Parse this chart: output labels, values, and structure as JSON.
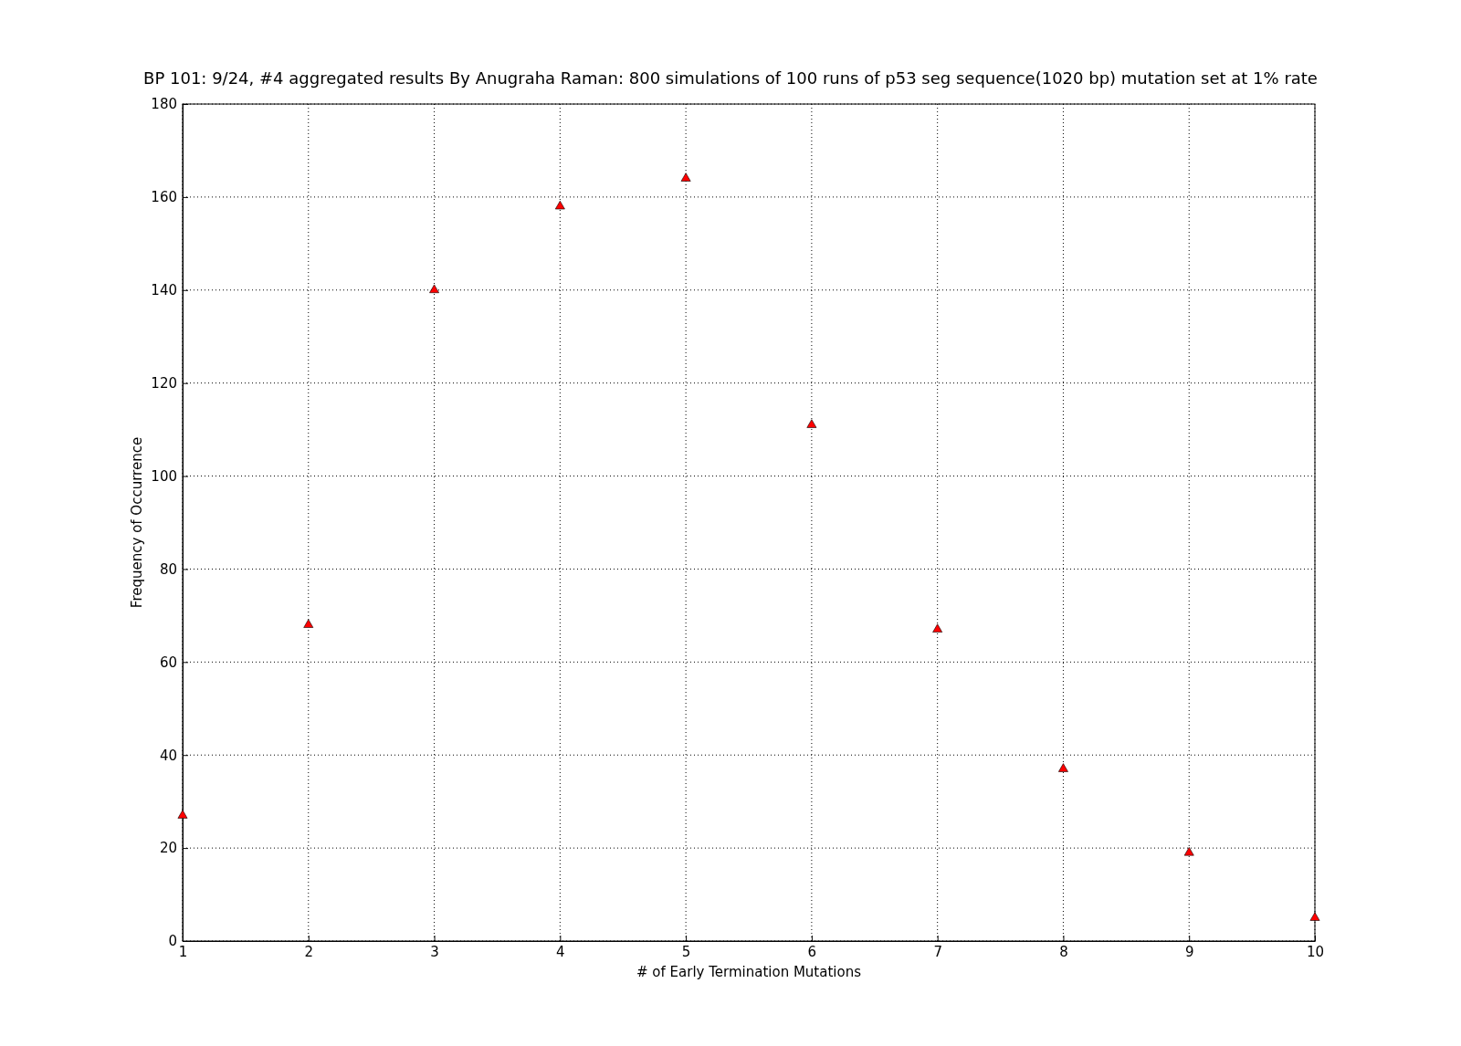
{
  "chart_data": {
    "type": "scatter",
    "title": "BP 101: 9/24, #4 aggregated results By Anugraha Raman:  800 simulations of 100 runs of p53 seg sequence(1020 bp) mutation set at 1% rate",
    "xlabel": "# of Early Termination Mutations",
    "ylabel": "Frequency of Occurrence",
    "x": [
      1,
      2,
      3,
      4,
      5,
      6,
      7,
      8,
      9,
      10
    ],
    "series": [
      {
        "color": "#ff0000",
        "values": [
          27,
          68,
          140,
          158,
          164,
          111,
          67,
          37,
          19,
          5
        ]
      }
    ],
    "xlim": [
      1,
      10
    ],
    "xticks": [
      1,
      2,
      3,
      4,
      5,
      6,
      7,
      8,
      9,
      10
    ],
    "ylim": [
      0,
      180
    ],
    "yticks": [
      0,
      20,
      40,
      60,
      80,
      100,
      120,
      140,
      160,
      180
    ],
    "grid": true,
    "marker": "triangle"
  }
}
